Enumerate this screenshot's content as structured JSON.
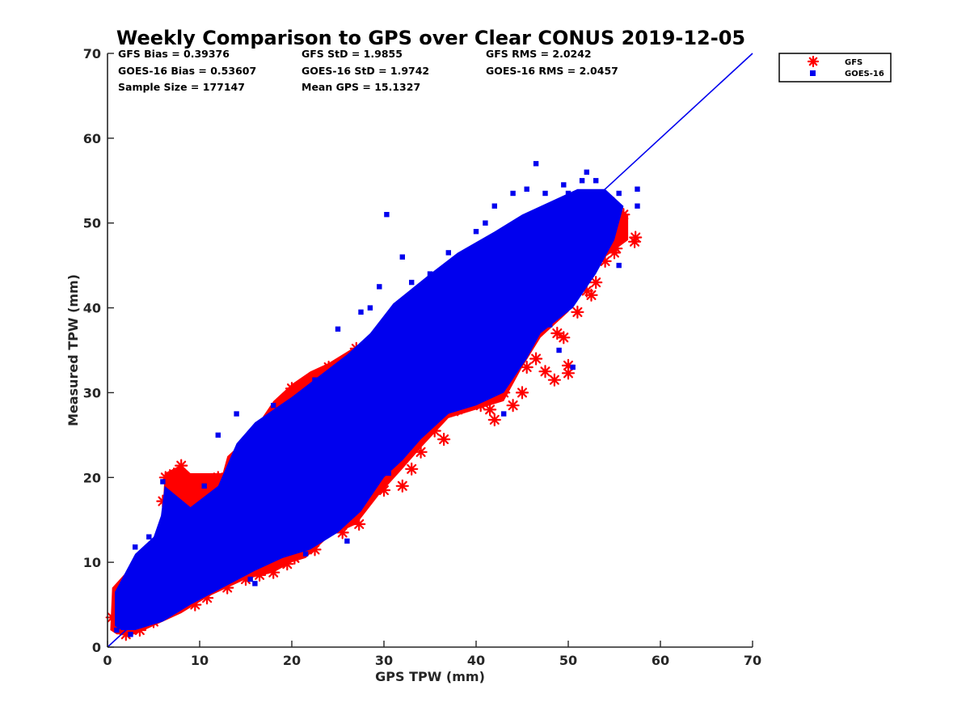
{
  "chart_data": {
    "type": "scatter",
    "title": "Weekly Comparison to GPS over Clear CONUS 2019-12-05",
    "xlabel": "GPS TPW (mm)",
    "ylabel": "Measured TPW (mm)",
    "xlim": [
      0,
      70
    ],
    "ylim": [
      0,
      70
    ],
    "xticks": [
      "0",
      "10",
      "20",
      "30",
      "40",
      "50",
      "60",
      "70"
    ],
    "yticks": [
      "0",
      "10",
      "20",
      "30",
      "40",
      "50",
      "60",
      "70"
    ],
    "grid": false,
    "legend_position": "outside-top-right",
    "stats": [
      [
        "GFS Bias = 0.39376",
        "GFS StD = 1.9855",
        "GFS RMS = 2.0242"
      ],
      [
        "GOES-16 Bias = 0.53607",
        "GOES-16 StD = 1.9742",
        "GOES-16 RMS = 2.0457"
      ],
      [
        "Sample Size = 177147",
        "Mean GPS = 15.1327",
        ""
      ]
    ],
    "reference_line": {
      "from": [
        0,
        0
      ],
      "to": [
        70,
        70
      ],
      "color": "#0000ee"
    },
    "series": [
      {
        "name": "GFS",
        "marker": "asterisk",
        "color": "#ff0000",
        "points": [
          [
            0.5,
            3.5
          ],
          [
            1.2,
            5.0
          ],
          [
            2.0,
            1.5
          ],
          [
            3.5,
            2.0
          ],
          [
            5.0,
            3.0
          ],
          [
            6.0,
            17.2
          ],
          [
            6.3,
            20.0
          ],
          [
            7.2,
            20.4
          ],
          [
            8.0,
            21.4
          ],
          [
            8.5,
            18.5
          ],
          [
            9.5,
            5.0
          ],
          [
            10.8,
            5.8
          ],
          [
            12.0,
            20.0
          ],
          [
            13.0,
            7.0
          ],
          [
            15.0,
            8.0
          ],
          [
            16.5,
            8.5
          ],
          [
            17.0,
            9.2
          ],
          [
            18.0,
            8.8
          ],
          [
            19.5,
            9.8
          ],
          [
            20.3,
            10.5
          ],
          [
            20.0,
            30.5
          ],
          [
            22.5,
            11.5
          ],
          [
            24.0,
            33.0
          ],
          [
            25.5,
            13.5
          ],
          [
            27.0,
            35.2
          ],
          [
            27.3,
            14.5
          ],
          [
            29.5,
            23.8
          ],
          [
            30.0,
            18.5
          ],
          [
            31.0,
            21.5
          ],
          [
            32.0,
            19.0
          ],
          [
            33.0,
            21.0
          ],
          [
            34.0,
            23.0
          ],
          [
            35.5,
            25.5
          ],
          [
            36.5,
            24.5
          ],
          [
            38.0,
            28.0
          ],
          [
            39.0,
            44.5
          ],
          [
            40.5,
            28.5
          ],
          [
            41.5,
            28.0
          ],
          [
            42.0,
            26.8
          ],
          [
            42.3,
            32.0
          ],
          [
            43.0,
            30.0
          ],
          [
            44.0,
            28.5
          ],
          [
            45.0,
            30.0
          ],
          [
            45.5,
            33.0
          ],
          [
            46.5,
            34.0
          ],
          [
            47.5,
            32.5
          ],
          [
            48.5,
            31.5
          ],
          [
            48.8,
            37.0
          ],
          [
            49.5,
            36.5
          ],
          [
            50.0,
            33.2
          ],
          [
            50.0,
            32.3
          ],
          [
            51.0,
            39.5
          ],
          [
            52.0,
            42.0
          ],
          [
            52.5,
            41.5
          ],
          [
            53.0,
            43.0
          ],
          [
            54.0,
            45.5
          ],
          [
            55.0,
            46.5
          ],
          [
            55.2,
            47.0
          ],
          [
            55.5,
            48.5
          ],
          [
            57.3,
            48.3
          ],
          [
            57.2,
            47.8
          ],
          [
            56.0,
            51.0
          ],
          [
            54.5,
            52.5
          ]
        ]
      },
      {
        "name": "GOES-16",
        "marker": "square",
        "color": "#0000ee",
        "points": [
          [
            1.0,
            2.0
          ],
          [
            2.5,
            1.5
          ],
          [
            3.0,
            11.8
          ],
          [
            4.5,
            13.0
          ],
          [
            6.0,
            19.5
          ],
          [
            9.5,
            16.0
          ],
          [
            10.5,
            19.0
          ],
          [
            14.0,
            27.5
          ],
          [
            15.5,
            8.0
          ],
          [
            16.0,
            7.5
          ],
          [
            17.5,
            10.5
          ],
          [
            21.5,
            11.0
          ],
          [
            22.5,
            31.5
          ],
          [
            25.0,
            37.5
          ],
          [
            26.0,
            12.5
          ],
          [
            27.5,
            39.5
          ],
          [
            28.5,
            40.0
          ],
          [
            29.5,
            42.5
          ],
          [
            30.3,
            51.0
          ],
          [
            32.0,
            46.0
          ],
          [
            33.0,
            43.0
          ],
          [
            35.0,
            44.0
          ],
          [
            37.0,
            46.5
          ],
          [
            38.0,
            38.0
          ],
          [
            40.0,
            49.0
          ],
          [
            41.0,
            50.0
          ],
          [
            41.5,
            47.5
          ],
          [
            42.0,
            52.0
          ],
          [
            44.0,
            53.5
          ],
          [
            45.5,
            54.0
          ],
          [
            46.5,
            57.0
          ],
          [
            47.5,
            53.5
          ],
          [
            48.5,
            52.0
          ],
          [
            49.5,
            54.5
          ],
          [
            50.0,
            53.5
          ],
          [
            51.0,
            53.0
          ],
          [
            51.5,
            55.0
          ],
          [
            52.0,
            56.0
          ],
          [
            53.0,
            55.0
          ],
          [
            54.0,
            52.0
          ],
          [
            55.5,
            53.5
          ],
          [
            57.5,
            54.0
          ],
          [
            57.5,
            52.0
          ],
          [
            55.5,
            45.0
          ],
          [
            49.0,
            35.0
          ],
          [
            48.0,
            38.0
          ],
          [
            46.0,
            37.5
          ],
          [
            50.5,
            33.0
          ],
          [
            43.0,
            27.5
          ],
          [
            30.5,
            20.5
          ],
          [
            28.0,
            18.0
          ],
          [
            5.0,
            12.5
          ],
          [
            2.0,
            3.0
          ],
          [
            1.5,
            6.5
          ],
          [
            12.0,
            25.0
          ],
          [
            18.0,
            28.5
          ]
        ]
      }
    ]
  },
  "legend": {
    "items": [
      {
        "label": "GFS",
        "marker": "asterisk",
        "color": "#ff0000"
      },
      {
        "label": "GOES-16",
        "marker": "square",
        "color": "#0000ee"
      }
    ]
  }
}
